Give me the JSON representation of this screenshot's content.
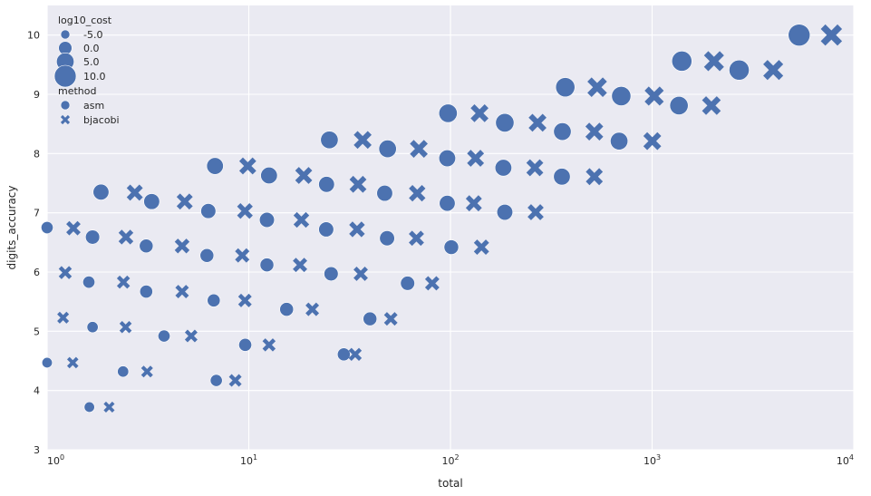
{
  "chart_data": {
    "type": "scatter",
    "xlabel": "total",
    "ylabel": "digits_accuracy",
    "xscale": "log",
    "xlim": [
      1,
      10000
    ],
    "ylim": [
      3,
      10.5
    ],
    "x_ticks": [
      {
        "value": 1,
        "base": "10",
        "exp": "0"
      },
      {
        "value": 10,
        "base": "10",
        "exp": "1"
      },
      {
        "value": 100,
        "base": "10",
        "exp": "2"
      },
      {
        "value": 1000,
        "base": "10",
        "exp": "3"
      },
      {
        "value": 10000,
        "base": "10",
        "exp": "4"
      }
    ],
    "y_ticks": [
      3,
      4,
      5,
      6,
      7,
      8,
      9,
      10
    ],
    "grid": true,
    "background": "#eaeaf2",
    "marker_color": "#4c72b0",
    "legend": {
      "position": "top-left",
      "size_title": "log10_cost",
      "size_entries": [
        {
          "label": "-5.0",
          "cost": -5
        },
        {
          "label": "0.0",
          "cost": 0
        },
        {
          "label": "5.0",
          "cost": 5
        },
        {
          "label": "10.0",
          "cost": 10
        }
      ],
      "style_title": "method",
      "style_entries": [
        {
          "label": "asm",
          "marker": "circle"
        },
        {
          "label": "bjacobi",
          "marker": "x"
        }
      ]
    },
    "series": [
      {
        "name": "asm",
        "marker": "circle",
        "points": [
          {
            "x": 1.0,
            "y": 4.47,
            "cost": -3.5
          },
          {
            "x": 1.0,
            "y": 6.75,
            "cost": -1.5
          },
          {
            "x": 1.62,
            "y": 3.72,
            "cost": -3.5
          },
          {
            "x": 1.61,
            "y": 5.83,
            "cost": -1.5
          },
          {
            "x": 1.68,
            "y": 5.07,
            "cost": -2.5
          },
          {
            "x": 1.68,
            "y": 6.59,
            "cost": 1.0
          },
          {
            "x": 1.85,
            "y": 7.35,
            "cost": 3.0
          },
          {
            "x": 2.38,
            "y": 4.32,
            "cost": -2.5
          },
          {
            "x": 3.1,
            "y": 5.67,
            "cost": -0.5
          },
          {
            "x": 3.1,
            "y": 6.44,
            "cost": 0.5
          },
          {
            "x": 3.3,
            "y": 7.19,
            "cost": 3.0
          },
          {
            "x": 3.8,
            "y": 4.92,
            "cost": -1.5
          },
          {
            "x": 6.2,
            "y": 6.28,
            "cost": 0.5
          },
          {
            "x": 6.3,
            "y": 7.03,
            "cost": 2.0
          },
          {
            "x": 6.7,
            "y": 5.52,
            "cost": -0.5
          },
          {
            "x": 6.8,
            "y": 7.79,
            "cost": 4.0
          },
          {
            "x": 6.9,
            "y": 4.17,
            "cost": -1.5
          },
          {
            "x": 9.6,
            "y": 4.77,
            "cost": -0.5
          },
          {
            "x": 12.3,
            "y": 6.12,
            "cost": 0.5
          },
          {
            "x": 12.3,
            "y": 6.88,
            "cost": 2.0
          },
          {
            "x": 12.6,
            "y": 7.63,
            "cost": 4.0
          },
          {
            "x": 15.4,
            "y": 5.37,
            "cost": 0.5
          },
          {
            "x": 24.2,
            "y": 6.72,
            "cost": 2.0
          },
          {
            "x": 24.3,
            "y": 7.48,
            "cost": 3.0
          },
          {
            "x": 25.1,
            "y": 8.23,
            "cost": 5.0
          },
          {
            "x": 25.6,
            "y": 5.97,
            "cost": 1.0
          },
          {
            "x": 29.6,
            "y": 4.61,
            "cost": -0.5
          },
          {
            "x": 39.9,
            "y": 5.21,
            "cost": 0.5
          },
          {
            "x": 47.2,
            "y": 7.33,
            "cost": 3.0
          },
          {
            "x": 48.5,
            "y": 6.57,
            "cost": 2.0
          },
          {
            "x": 48.8,
            "y": 8.08,
            "cost": 5.0
          },
          {
            "x": 61.3,
            "y": 5.81,
            "cost": 1.0
          },
          {
            "x": 96.4,
            "y": 7.92,
            "cost": 4.0
          },
          {
            "x": 97.3,
            "y": 8.68,
            "cost": 6.0
          },
          {
            "x": 96.4,
            "y": 7.16,
            "cost": 3.0
          },
          {
            "x": 101.0,
            "y": 6.42,
            "cost": 1.5
          },
          {
            "x": 183.0,
            "y": 7.76,
            "cost": 4.0
          },
          {
            "x": 186.0,
            "y": 8.52,
            "cost": 6.0
          },
          {
            "x": 186.0,
            "y": 7.01,
            "cost": 3.0
          },
          {
            "x": 357.0,
            "y": 7.61,
            "cost": 4.0
          },
          {
            "x": 359.0,
            "y": 8.37,
            "cost": 5.0
          },
          {
            "x": 371.0,
            "y": 9.12,
            "cost": 7.0
          },
          {
            "x": 686.0,
            "y": 8.21,
            "cost": 5.0
          },
          {
            "x": 703.0,
            "y": 8.97,
            "cost": 7.0
          },
          {
            "x": 1359.0,
            "y": 8.81,
            "cost": 6.0
          },
          {
            "x": 1404.0,
            "y": 9.56,
            "cost": 8.0
          },
          {
            "x": 2701.0,
            "y": 9.41,
            "cost": 8.0
          },
          {
            "x": 5360.0,
            "y": 10.0,
            "cost": 10.0
          }
        ]
      },
      {
        "name": "bjacobi",
        "marker": "x",
        "points": [
          {
            "x": 1.2,
            "y": 5.23,
            "cost": -2.0
          },
          {
            "x": 1.34,
            "y": 4.47,
            "cost": -2.5
          },
          {
            "x": 1.23,
            "y": 5.99,
            "cost": -0.5
          },
          {
            "x": 1.35,
            "y": 6.74,
            "cost": 1.0
          },
          {
            "x": 2.03,
            "y": 3.72,
            "cost": -3.0
          },
          {
            "x": 2.39,
            "y": 5.83,
            "cost": -0.5
          },
          {
            "x": 2.45,
            "y": 5.07,
            "cost": -1.5
          },
          {
            "x": 2.46,
            "y": 6.59,
            "cost": 1.5
          },
          {
            "x": 2.72,
            "y": 7.34,
            "cost": 3.0
          },
          {
            "x": 3.13,
            "y": 4.32,
            "cost": -2.0
          },
          {
            "x": 4.67,
            "y": 5.67,
            "cost": 0.0
          },
          {
            "x": 4.67,
            "y": 6.44,
            "cost": 1.5
          },
          {
            "x": 4.81,
            "y": 7.19,
            "cost": 3.0
          },
          {
            "x": 5.18,
            "y": 4.92,
            "cost": -1.0
          },
          {
            "x": 8.57,
            "y": 4.17,
            "cost": -1.0
          },
          {
            "x": 9.28,
            "y": 6.28,
            "cost": 1.0
          },
          {
            "x": 9.57,
            "y": 7.03,
            "cost": 2.5
          },
          {
            "x": 9.57,
            "y": 5.52,
            "cost": 0.0
          },
          {
            "x": 9.88,
            "y": 7.79,
            "cost": 4.0
          },
          {
            "x": 12.6,
            "y": 4.77,
            "cost": -0.5
          },
          {
            "x": 17.95,
            "y": 6.12,
            "cost": 1.0
          },
          {
            "x": 18.23,
            "y": 6.88,
            "cost": 2.5
          },
          {
            "x": 18.72,
            "y": 7.63,
            "cost": 4.0
          },
          {
            "x": 20.65,
            "y": 5.37,
            "cost": 0.0
          },
          {
            "x": 33.7,
            "y": 4.61,
            "cost": -0.5
          },
          {
            "x": 34.4,
            "y": 6.72,
            "cost": 2.5
          },
          {
            "x": 34.8,
            "y": 7.48,
            "cost": 4.0
          },
          {
            "x": 35.9,
            "y": 5.97,
            "cost": 1.0
          },
          {
            "x": 36.7,
            "y": 8.23,
            "cost": 5.0
          },
          {
            "x": 50.6,
            "y": 5.21,
            "cost": 0.0
          },
          {
            "x": 67.8,
            "y": 6.57,
            "cost": 2.0
          },
          {
            "x": 68.4,
            "y": 7.33,
            "cost": 3.5
          },
          {
            "x": 69.7,
            "y": 8.08,
            "cost": 5.0
          },
          {
            "x": 81.2,
            "y": 5.81,
            "cost": 1.0
          },
          {
            "x": 130.6,
            "y": 7.16,
            "cost": 3.0
          },
          {
            "x": 133.2,
            "y": 7.92,
            "cost": 4.0
          },
          {
            "x": 139.4,
            "y": 8.68,
            "cost": 5.0
          },
          {
            "x": 142.5,
            "y": 6.42,
            "cost": 2.0
          },
          {
            "x": 262.1,
            "y": 7.76,
            "cost": 4.0
          },
          {
            "x": 264.5,
            "y": 7.01,
            "cost": 3.0
          },
          {
            "x": 270.3,
            "y": 8.52,
            "cost": 5.0
          },
          {
            "x": 517.0,
            "y": 8.37,
            "cost": 5.0
          },
          {
            "x": 517.0,
            "y": 7.61,
            "cost": 4.0
          },
          {
            "x": 534.0,
            "y": 9.12,
            "cost": 7.0
          },
          {
            "x": 1002.0,
            "y": 8.21,
            "cost": 5.0
          },
          {
            "x": 1024.0,
            "y": 8.97,
            "cost": 6.5
          },
          {
            "x": 1968.0,
            "y": 8.81,
            "cost": 6.0
          },
          {
            "x": 2027.0,
            "y": 9.56,
            "cost": 7.5
          },
          {
            "x": 3986.0,
            "y": 9.41,
            "cost": 7.5
          },
          {
            "x": 7746.0,
            "y": 10.0,
            "cost": 9.0
          }
        ]
      }
    ]
  }
}
